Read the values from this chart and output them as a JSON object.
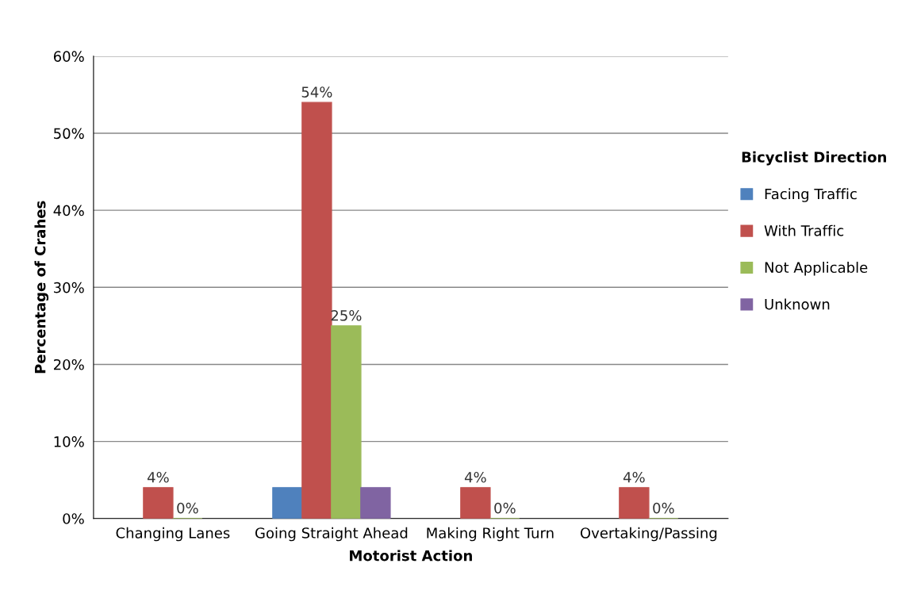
{
  "chart_data": {
    "type": "bar",
    "xlabel": "Motorist Action",
    "ylabel": "Percentage of Crahes",
    "legend_title": "Bicyclist Direction",
    "categories": [
      "Changing Lanes",
      "Going Straight Ahead",
      "Making Right Turn",
      "Overtaking/Passing"
    ],
    "series": [
      {
        "name": "Facing Traffic",
        "color": "#4f81bd",
        "values": [
          null,
          4,
          null,
          null
        ],
        "value_labels": [
          null,
          null,
          null,
          null
        ]
      },
      {
        "name": "With Traffic",
        "color": "#c0504d",
        "values": [
          4,
          54,
          4,
          4
        ],
        "value_labels": [
          "4%",
          "54%",
          "4%",
          "4%"
        ]
      },
      {
        "name": "Not Applicable",
        "color": "#9bbb59",
        "values": [
          0,
          25,
          0,
          0
        ],
        "value_labels": [
          "0%",
          "25%",
          "0%",
          "0%"
        ]
      },
      {
        "name": "Unknown",
        "color": "#8064a2",
        "values": [
          null,
          4,
          null,
          null
        ],
        "value_labels": [
          null,
          null,
          null,
          null
        ]
      }
    ],
    "ylim": [
      0,
      60
    ],
    "yticks": [
      {
        "value": 0,
        "label": "0%"
      },
      {
        "value": 10,
        "label": "10%"
      },
      {
        "value": 20,
        "label": "20%"
      },
      {
        "value": 30,
        "label": "30%"
      },
      {
        "value": 40,
        "label": "40%"
      },
      {
        "value": 50,
        "label": "50%"
      },
      {
        "value": 60,
        "label": "60%"
      }
    ],
    "grid": "y",
    "legend": "right"
  }
}
